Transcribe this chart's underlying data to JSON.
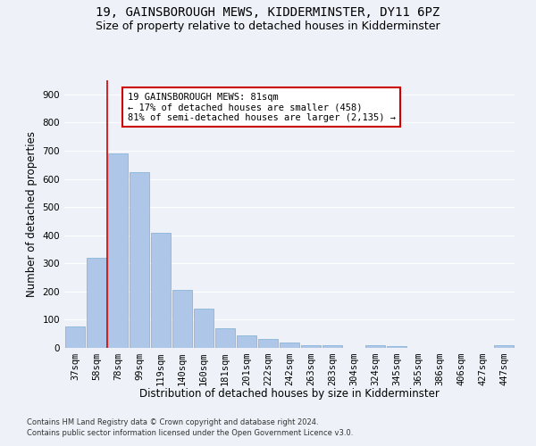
{
  "title": "19, GAINSBOROUGH MEWS, KIDDERMINSTER, DY11 6PZ",
  "subtitle": "Size of property relative to detached houses in Kidderminster",
  "xlabel": "Distribution of detached houses by size in Kidderminster",
  "ylabel": "Number of detached properties",
  "footnote1": "Contains HM Land Registry data © Crown copyright and database right 2024.",
  "footnote2": "Contains public sector information licensed under the Open Government Licence v3.0.",
  "categories": [
    "37sqm",
    "58sqm",
    "78sqm",
    "99sqm",
    "119sqm",
    "140sqm",
    "160sqm",
    "181sqm",
    "201sqm",
    "222sqm",
    "242sqm",
    "263sqm",
    "283sqm",
    "304sqm",
    "324sqm",
    "345sqm",
    "365sqm",
    "386sqm",
    "406sqm",
    "427sqm",
    "447sqm"
  ],
  "values": [
    75,
    320,
    690,
    625,
    410,
    205,
    140,
    70,
    45,
    32,
    20,
    10,
    8,
    0,
    8,
    5,
    0,
    0,
    0,
    0,
    8
  ],
  "bar_color": "#aec6e8",
  "bar_edge_color": "#7aafd4",
  "vline_color": "#cc0000",
  "annotation_text": "19 GAINSBOROUGH MEWS: 81sqm\n← 17% of detached houses are smaller (458)\n81% of semi-detached houses are larger (2,135) →",
  "annotation_box_color": "#ffffff",
  "annotation_box_edge": "#cc0000",
  "ylim": [
    0,
    950
  ],
  "yticks": [
    0,
    100,
    200,
    300,
    400,
    500,
    600,
    700,
    800,
    900
  ],
  "bg_color": "#eef2f8",
  "plot_bg_color": "#eef2f8",
  "grid_color": "#ffffff",
  "title_fontsize": 10,
  "subtitle_fontsize": 9,
  "axis_label_fontsize": 8.5,
  "tick_fontsize": 7.5,
  "annotation_fontsize": 7.5,
  "footnote_fontsize": 6
}
